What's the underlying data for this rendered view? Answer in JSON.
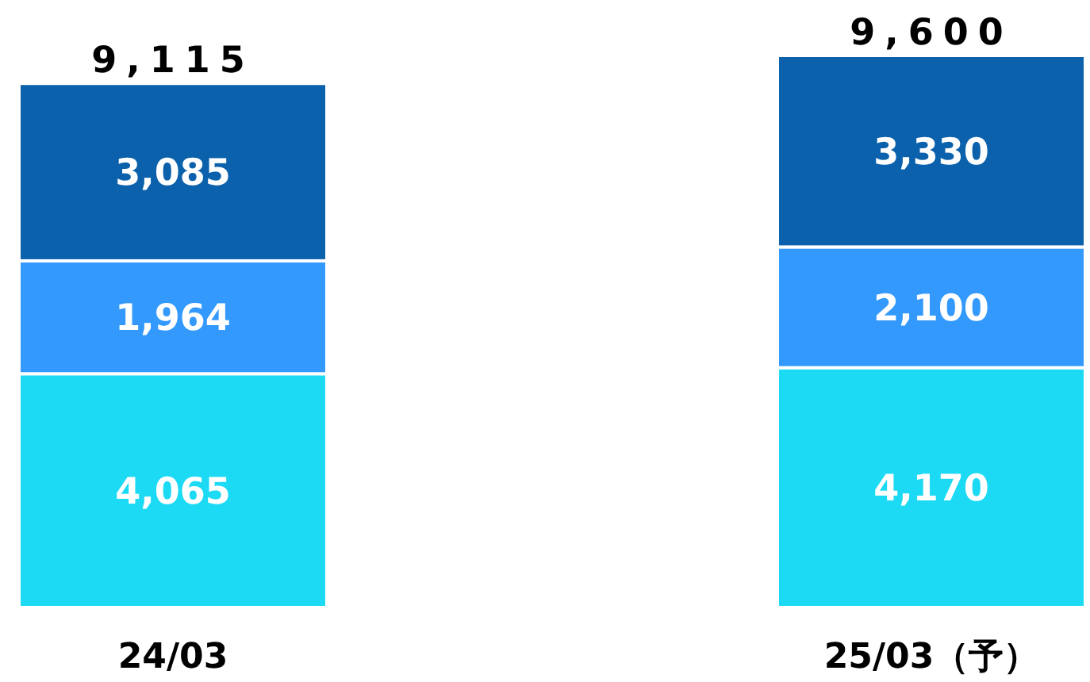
{
  "chart_data": {
    "type": "bar",
    "stacked": true,
    "categories": [
      "24/03",
      "25/03（予）"
    ],
    "series": [
      {
        "color": "#1cdaf4",
        "values": [
          4065,
          4170
        ],
        "value_labels": [
          "4,065",
          "4,170"
        ]
      },
      {
        "color": "#3399fd",
        "values": [
          1964,
          2100
        ],
        "value_labels": [
          "1,964",
          "2,100"
        ]
      },
      {
        "color": "#0b61ab",
        "values": [
          3085,
          3330
        ],
        "value_labels": [
          "3,085",
          "3,330"
        ]
      }
    ],
    "totals": [
      "9,115",
      "9,600"
    ]
  }
}
